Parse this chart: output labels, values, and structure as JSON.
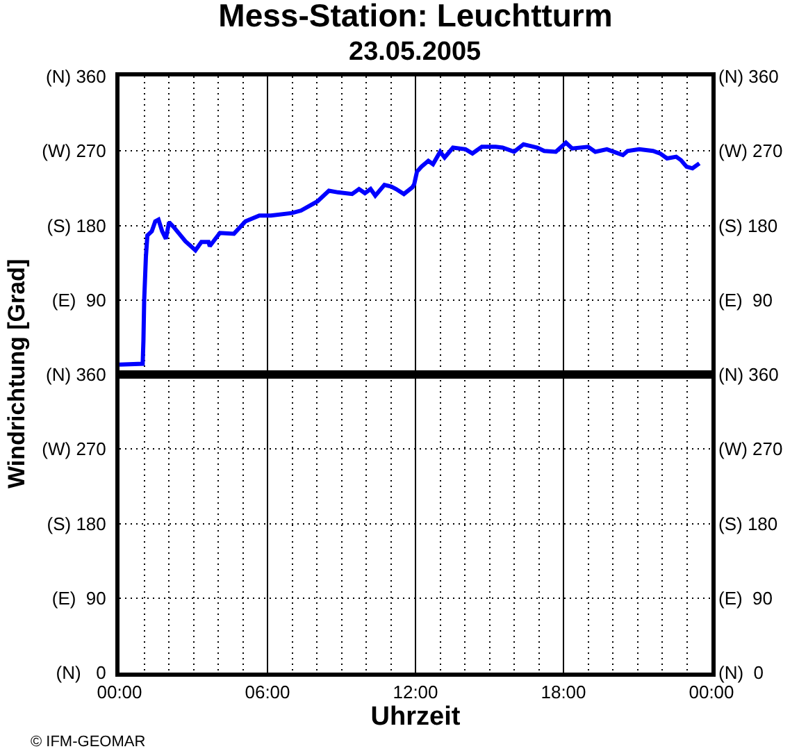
{
  "chart_data": [
    {
      "type": "line",
      "title": "Mess-Station: Leuchtturm",
      "subtitle": "23.05.2005",
      "ylabel": "Windrichtung [Grad]",
      "x": [
        0,
        0.94,
        0.97,
        1.0,
        1.07,
        1.13,
        1.31,
        1.45,
        1.58,
        1.73,
        1.88,
        2.01,
        2.2,
        2.67,
        3.08,
        3.32,
        3.61,
        3.66,
        4.07,
        4.64,
        5.11,
        5.67,
        6.14,
        6.99,
        7.36,
        8.02,
        8.49,
        8.86,
        9.43,
        9.71,
        9.95,
        10.18,
        10.37,
        10.74,
        11.02,
        11.21,
        11.53,
        11.87,
        11.95,
        12.06,
        12.24,
        12.52,
        12.71,
        13.0,
        13.18,
        13.52,
        14.03,
        14.31,
        14.69,
        15.25,
        15.53,
        16.0,
        16.38,
        16.94,
        17.22,
        17.69,
        18.1,
        18.35,
        19.0,
        19.29,
        19.76,
        20.13,
        20.41,
        20.6,
        21.07,
        21.63,
        21.92,
        22.2,
        22.57,
        22.76,
        22.99,
        23.23,
        23.51
      ],
      "series": [
        {
          "color": "#0000ff",
          "values": [
            12,
            13,
            41,
            89,
            142,
            168,
            173,
            185,
            187,
            173,
            164,
            184,
            178,
            161,
            150,
            160,
            160,
            155,
            171,
            170,
            185,
            192,
            192,
            195,
            198,
            209,
            222,
            220,
            218,
            224,
            219,
            224,
            216,
            229,
            227,
            224,
            218,
            226,
            230,
            245,
            251,
            258,
            254,
            269,
            262,
            274,
            272,
            267,
            275,
            275,
            274,
            269,
            278,
            274,
            270,
            269,
            280,
            273,
            275,
            269,
            272,
            268,
            265,
            270,
            272,
            270,
            267,
            261,
            263,
            259,
            251,
            249,
            255
          ]
        }
      ],
      "xlim": [
        0,
        24
      ],
      "ylim": [
        0,
        360
      ],
      "yticks": [
        {
          "value": 90,
          "label": "(E)  90"
        },
        {
          "value": 180,
          "label": "(S) 180"
        },
        {
          "value": 270,
          "label": "(W) 270"
        },
        {
          "value": 360,
          "label": "(N) 360"
        }
      ],
      "y2lim": [
        0,
        360
      ],
      "y2ticks": [
        {
          "value": 90,
          "label": "(E)  90"
        },
        {
          "value": 180,
          "label": "(S) 180"
        },
        {
          "value": 270,
          "label": "(W) 270"
        },
        {
          "value": 360,
          "label": "(N) 360"
        }
      ],
      "grid": true,
      "line_style": "solid",
      "tick_labels": "y"
    },
    {
      "type": "line",
      "xlabel": "Uhrzeit",
      "annotations": [
        "© IFM-GEOMAR"
      ],
      "xlim": [
        0,
        24
      ],
      "xticks": [
        {
          "value": 0,
          "label": "00:00"
        },
        {
          "value": 1,
          "label": null
        },
        {
          "value": 2,
          "label": null
        },
        {
          "value": 3,
          "label": null
        },
        {
          "value": 4,
          "label": null
        },
        {
          "value": 5,
          "label": null
        },
        {
          "value": 6,
          "label": "06:00"
        },
        {
          "value": 7,
          "label": null
        },
        {
          "value": 8,
          "label": null
        },
        {
          "value": 9,
          "label": null
        },
        {
          "value": 10,
          "label": null
        },
        {
          "value": 11,
          "label": null
        },
        {
          "value": 12,
          "label": "12:00"
        },
        {
          "value": 13,
          "label": null
        },
        {
          "value": 14,
          "label": null
        },
        {
          "value": 15,
          "label": null
        },
        {
          "value": 16,
          "label": null
        },
        {
          "value": 17,
          "label": null
        },
        {
          "value": 18,
          "label": "18:00"
        },
        {
          "value": 19,
          "label": null
        },
        {
          "value": 20,
          "label": null
        },
        {
          "value": 21,
          "label": null
        },
        {
          "value": 22,
          "label": null
        },
        {
          "value": 23,
          "label": null
        },
        {
          "value": 24,
          "label": "00:00"
        }
      ],
      "ylim": [
        0,
        360
      ],
      "yticks": [
        {
          "value": 0,
          "label": "(N)   0"
        },
        {
          "value": 90,
          "label": "(E)  90"
        },
        {
          "value": 180,
          "label": "(S) 180"
        },
        {
          "value": 270,
          "label": "(W) 270"
        },
        {
          "value": 360,
          "label": "(N) 360"
        }
      ],
      "y2lim": [
        0,
        360
      ],
      "y2ticks": [
        {
          "value": 0,
          "label": "(N)  0"
        },
        {
          "value": 90,
          "label": "(E)  90"
        },
        {
          "value": 180,
          "label": "(S) 180"
        },
        {
          "value": 270,
          "label": "(W) 270"
        },
        {
          "value": 360,
          "label": "(N) 360"
        }
      ],
      "grid": true
    }
  ]
}
